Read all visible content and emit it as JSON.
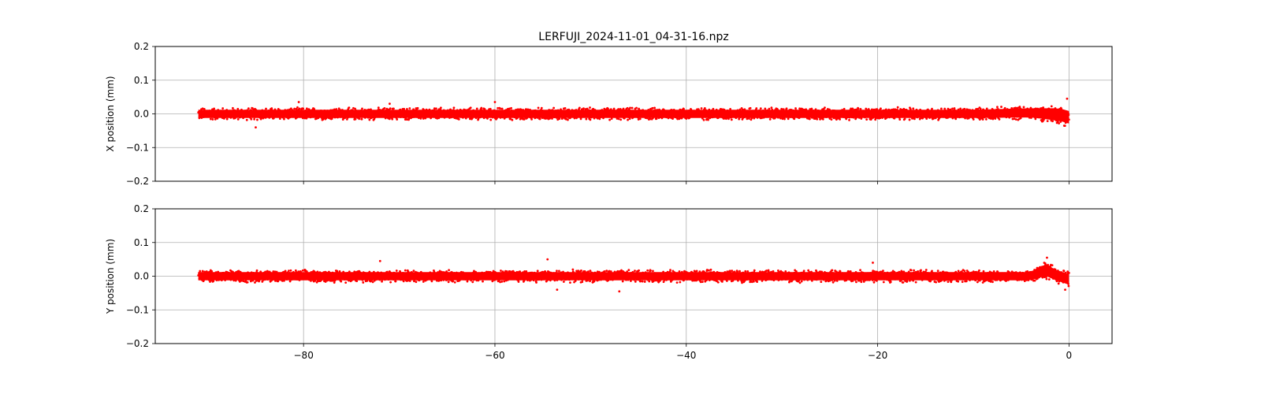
{
  "figure": {
    "title": "LERFUJI_2024-11-01_04-31-16.npz"
  },
  "chart_data": [
    {
      "type": "scatter",
      "title": "LERFUJI_2024-11-01_04-31-16.npz",
      "xlabel": "",
      "ylabel": "X position (mm)",
      "xlim": [
        -95.5,
        4.5
      ],
      "ylim": [
        -0.2,
        0.2
      ],
      "xticks": [
        -80,
        -60,
        -40,
        -20,
        0
      ],
      "xtick_labels": [
        "",
        "",
        "",
        "",
        ""
      ],
      "yticks": [
        -0.2,
        -0.1,
        0.0,
        0.1,
        0.2
      ],
      "ytick_labels": [
        "−0.2",
        "−0.1",
        "0.0",
        "0.1",
        "0.2"
      ],
      "grid": true,
      "color": "#ff0000",
      "series": [
        {
          "x_range": [
            -91.0,
            0.0
          ],
          "band_center": [
            [
              -91,
              0.0
            ],
            [
              -10,
              0.0
            ],
            [
              -4,
              0.003
            ],
            [
              -1,
              -0.002
            ],
            [
              0,
              -0.01
            ]
          ],
          "band_halfwidth": [
            [
              -91,
              0.02
            ],
            [
              -10,
              0.02
            ],
            [
              -4,
              0.022
            ],
            [
              -1,
              0.03
            ],
            [
              0,
              0.03
            ]
          ],
          "outliers": [
            [
              -85,
              -0.04
            ],
            [
              -80.5,
              0.035
            ],
            [
              -60,
              0.035
            ],
            [
              -71,
              0.03
            ],
            [
              -0.2,
              0.045
            ],
            [
              -0.5,
              -0.035
            ]
          ]
        }
      ]
    },
    {
      "type": "scatter",
      "title": "",
      "xlabel": "",
      "ylabel": "Y position (mm)",
      "xlim": [
        -95.5,
        4.5
      ],
      "ylim": [
        -0.2,
        0.2
      ],
      "xticks": [
        -80,
        -60,
        -40,
        -20,
        0
      ],
      "xtick_labels": [
        "−80",
        "−60",
        "−40",
        "−20",
        "0"
      ],
      "yticks": [
        -0.2,
        -0.1,
        0.0,
        0.1,
        0.2
      ],
      "ytick_labels": [
        "−0.2",
        "−0.1",
        "0.0",
        "0.1",
        "0.2"
      ],
      "grid": true,
      "color": "#ff0000",
      "series": [
        {
          "x_range": [
            -91.0,
            0.0
          ],
          "band_center": [
            [
              -91,
              0.0
            ],
            [
              -4,
              0.0
            ],
            [
              -2.5,
              0.02
            ],
            [
              -1.5,
              0.005
            ],
            [
              0,
              -0.01
            ]
          ],
          "band_halfwidth": [
            [
              -91,
              0.02
            ],
            [
              -4,
              0.02
            ],
            [
              -2.5,
              0.03
            ],
            [
              -1.5,
              0.025
            ],
            [
              0,
              0.025
            ]
          ],
          "outliers": [
            [
              -54.5,
              0.05
            ],
            [
              -72,
              0.045
            ],
            [
              -47,
              -0.045
            ],
            [
              -53.5,
              -0.04
            ],
            [
              -2.3,
              0.055
            ],
            [
              -0.4,
              -0.04
            ],
            [
              -20.5,
              0.04
            ]
          ]
        }
      ]
    }
  ]
}
